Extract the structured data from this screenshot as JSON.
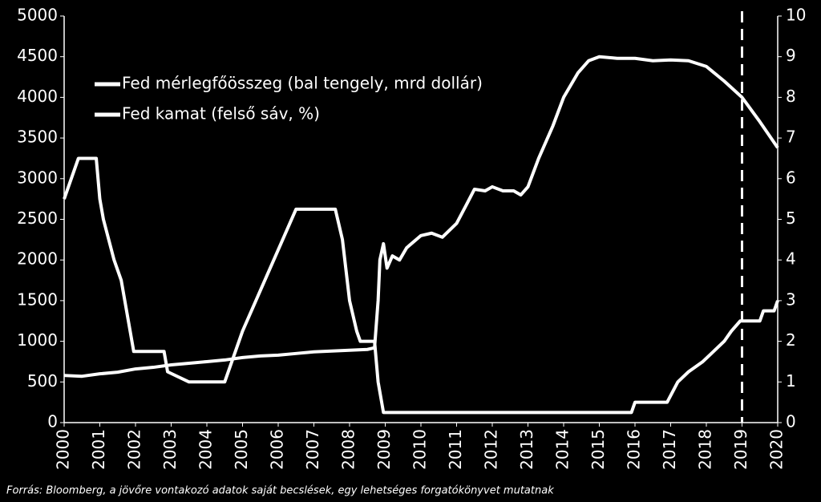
{
  "chart_data": {
    "type": "line",
    "source": "Forrás: Bloomberg, a jövőre vontakozó adatok saját becslések, egy lehetséges forgatókönyvet mutatnak",
    "xlim": [
      2000,
      2020
    ],
    "xticks": [
      2000,
      2001,
      2002,
      2003,
      2004,
      2005,
      2006,
      2007,
      2008,
      2009,
      2010,
      2011,
      2012,
      2013,
      2014,
      2015,
      2016,
      2017,
      2018,
      2019,
      2020
    ],
    "ylim": [
      0,
      5000
    ],
    "yticks": [
      0,
      500,
      1000,
      1500,
      2000,
      2500,
      3000,
      3500,
      4000,
      4500,
      5000
    ],
    "y2lim": [
      0,
      10
    ],
    "y2ticks": [
      0,
      1,
      2,
      3,
      4,
      5,
      6,
      7,
      8,
      9,
      10
    ],
    "forecast_start": 2019,
    "legend": "upper left",
    "series": [
      {
        "name": "Fed mérlegfőösszeg (bal tengely, mrd dollár)",
        "color": "#ffffff",
        "axis": "y",
        "x": [
          2000,
          2000.5,
          2001,
          2001.5,
          2002,
          2002.5,
          2003,
          2003.5,
          2004,
          2004.5,
          2005,
          2005.5,
          2006,
          2006.5,
          2007,
          2007.5,
          2008,
          2008.5,
          2008.7,
          2008.8,
          2008.85,
          2008.95,
          2009.05,
          2009.2,
          2009.4,
          2009.6,
          2010,
          2010.3,
          2010.6,
          2011,
          2011.3,
          2011.5,
          2011.8,
          2012,
          2012.3,
          2012.6,
          2012.8,
          2013,
          2013.3,
          2013.7,
          2014,
          2014.4,
          2014.7,
          2015,
          2015.5,
          2016,
          2016.5,
          2017,
          2017.5,
          2018,
          2018.5,
          2019,
          2019.5,
          2020
        ],
        "values": [
          580,
          570,
          600,
          620,
          660,
          680,
          710,
          730,
          750,
          770,
          800,
          820,
          830,
          850,
          870,
          880,
          890,
          900,
          920,
          1500,
          2000,
          2200,
          1900,
          2050,
          2000,
          2150,
          2300,
          2330,
          2280,
          2450,
          2700,
          2870,
          2850,
          2900,
          2850,
          2850,
          2800,
          2900,
          3250,
          3650,
          4000,
          4300,
          4450,
          4500,
          4480,
          4480,
          4450,
          4460,
          4450,
          4380,
          4200,
          4000,
          3700,
          3380
        ]
      },
      {
        "name": "Fed kamat (felső sáv, %)",
        "color": "#ffffff",
        "axis": "y2",
        "x": [
          2000,
          2000.2,
          2000.4,
          2000.9,
          2001,
          2001.1,
          2001.4,
          2001.6,
          2001.8,
          2001.95,
          2002.8,
          2002.9,
          2003.5,
          2004.5,
          2004.7,
          2005,
          2005.5,
          2006,
          2006.5,
          2007.6,
          2007.8,
          2008,
          2008.2,
          2008.3,
          2008.7,
          2008.8,
          2008.95,
          2015.9,
          2016,
          2016.9,
          2017.2,
          2017.5,
          2017.9,
          2018.2,
          2018.5,
          2018.7,
          2018.95,
          2019.5,
          2019.6,
          2019.9,
          2020
        ],
        "values": [
          5.5,
          6,
          6.5,
          6.5,
          5.5,
          5,
          4,
          3.5,
          2.5,
          1.75,
          1.75,
          1.25,
          1,
          1,
          1.5,
          2.25,
          3.25,
          4.25,
          5.25,
          5.25,
          4.5,
          3,
          2.25,
          2,
          2,
          1,
          0.25,
          0.25,
          0.5,
          0.5,
          1,
          1.25,
          1.5,
          1.75,
          2,
          2.25,
          2.5,
          2.5,
          2.75,
          2.75,
          3
        ]
      }
    ]
  }
}
